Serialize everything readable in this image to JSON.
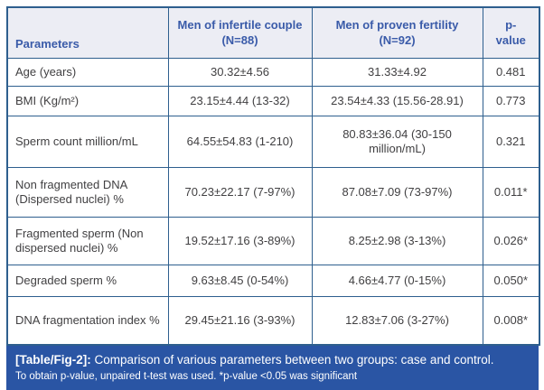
{
  "colors": {
    "border": "#2E5F8E",
    "header_bg": "#ECEDF4",
    "header_text": "#3A5BA9",
    "body_text": "#414042",
    "caption_bg": "#2A55A4",
    "caption_text": "#FFFFFF"
  },
  "table": {
    "headers": [
      "Parameters",
      "Men of infertile couple (N=88)",
      "Men of proven fertility (N=92)",
      "p-value"
    ],
    "rows": [
      {
        "parameter": "Age (years)",
        "infertile": "30.32±4.56",
        "fertile": "31.33±4.92",
        "p_value": "0.481"
      },
      {
        "parameter": "BMI (Kg/m²)",
        "infertile": "23.15±4.44 (13-32)",
        "fertile": "23.54±4.33 (15.56-28.91)",
        "p_value": "0.773"
      },
      {
        "parameter": "Sperm count million/mL",
        "infertile": "64.55±54.83 (1-210)",
        "fertile": "80.83±36.04 (30-150 million/mL)",
        "p_value": "0.321"
      },
      {
        "parameter": "Non fragmented DNA (Dispersed nuclei) %",
        "infertile": "70.23±22.17 (7-97%)",
        "fertile": "87.08±7.09 (73-97%)",
        "p_value": "0.011*"
      },
      {
        "parameter": "Fragmented sperm (Non dispersed nuclei) %",
        "infertile": "19.52±17.16 (3-89%)",
        "fertile": "8.25±2.98 (3-13%)",
        "p_value": "0.026*"
      },
      {
        "parameter": "Degraded sperm %",
        "infertile": "9.63±8.45 (0-54%)",
        "fertile": "4.66±4.77 (0-15%)",
        "p_value": "0.050*"
      },
      {
        "parameter": "DNA fragmentation index %",
        "infertile": "29.45±21.16 (3-93%)",
        "fertile": "12.83±7.06 (3-27%)",
        "p_value": "0.008*"
      }
    ]
  },
  "caption": {
    "label": "[Table/Fig-2]:",
    "text": " Comparison of various parameters between two groups: case and control.",
    "note": "To obtain p-value, unpaired t-test was used. *p-value <0.05 was significant"
  }
}
